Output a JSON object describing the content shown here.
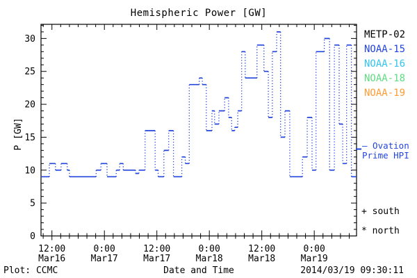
{
  "chart_data": {
    "type": "line",
    "subtype": "step-histogram",
    "title": "Hemispheric Power [GW]",
    "xlabel": "Date and Time",
    "ylabel": "P [GW]",
    "ylim": [
      0,
      32.15
    ],
    "grid": false,
    "legend_position": "right",
    "y_major_ticks": [
      0,
      5,
      10,
      15,
      20,
      25,
      30
    ],
    "y_minor_tick_step": 1,
    "x_axis": {
      "start": "2014 Mar16 09:30",
      "end": "2014 Mar19 09:40",
      "hours_span": 72.17,
      "minor_tick_step_hours": 2,
      "major_ticks": [
        {
          "t": 2.5,
          "time": "12:00",
          "date": "Mar16"
        },
        {
          "t": 14.5,
          "time": "0:00",
          "date": "Mar17"
        },
        {
          "t": 26.5,
          "time": "12:00",
          "date": "Mar17"
        },
        {
          "t": 38.5,
          "time": "0:00",
          "date": "Mar18"
        },
        {
          "t": 50.5,
          "time": "12:00",
          "date": "Mar18"
        },
        {
          "t": 62.5,
          "time": "0:00",
          "date": "Mar19"
        }
      ]
    },
    "series": [
      {
        "name": "NOAA-15",
        "color": "#2244dd",
        "line_style": "solid horizontal steps with dotted vertical connectors",
        "steps_t_hours_value_gw": [
          [
            0,
            9
          ],
          [
            1.9,
            11
          ],
          [
            3.3,
            10
          ],
          [
            4.6,
            11
          ],
          [
            6,
            10
          ],
          [
            6.5,
            9
          ],
          [
            12.6,
            10
          ],
          [
            13.7,
            11
          ],
          [
            15.1,
            9
          ],
          [
            17.2,
            10
          ],
          [
            18,
            11
          ],
          [
            18.8,
            10
          ],
          [
            21.6,
            9.5
          ],
          [
            22.4,
            10
          ],
          [
            23.8,
            16
          ],
          [
            26.1,
            10
          ],
          [
            26.8,
            9
          ],
          [
            28.1,
            13
          ],
          [
            29.2,
            16
          ],
          [
            30.3,
            9
          ],
          [
            32.2,
            12
          ],
          [
            33,
            11
          ],
          [
            33.9,
            23
          ],
          [
            36.2,
            24
          ],
          [
            36.9,
            23
          ],
          [
            37.8,
            16
          ],
          [
            39.1,
            19
          ],
          [
            39.7,
            17
          ],
          [
            40.7,
            19
          ],
          [
            42,
            21
          ],
          [
            42.9,
            18
          ],
          [
            43.6,
            16
          ],
          [
            44.3,
            16.5
          ],
          [
            45,
            19
          ],
          [
            45.9,
            28
          ],
          [
            46.7,
            24
          ],
          [
            49.4,
            29
          ],
          [
            51,
            25
          ],
          [
            52,
            18
          ],
          [
            52.9,
            28
          ],
          [
            53.9,
            31
          ],
          [
            54.8,
            15
          ],
          [
            55.8,
            19
          ],
          [
            56.9,
            9
          ],
          [
            59.8,
            12
          ],
          [
            60.9,
            18
          ],
          [
            62,
            10
          ],
          [
            62.9,
            28
          ],
          [
            64.8,
            30
          ],
          [
            66,
            10
          ],
          [
            67.1,
            29
          ],
          [
            68.2,
            17
          ],
          [
            69,
            11
          ],
          [
            69.9,
            29
          ],
          [
            71,
            9
          ]
        ]
      }
    ],
    "ovation_marker": {
      "value_gw": 13.2,
      "color": "#2244dd"
    }
  },
  "legend": {
    "items": [
      {
        "label": "METP-02",
        "color": "#000000"
      },
      {
        "label": "NOAA-15",
        "color": "#2244dd"
      },
      {
        "label": "NOAA-16",
        "color": "#33c4ee"
      },
      {
        "label": "NOAA-18",
        "color": "#5fdc82"
      },
      {
        "label": "NOAA-19",
        "color": "#ff9c33"
      }
    ]
  },
  "annotations": {
    "ovation_line1": "— Ovation",
    "ovation_line2": "Prime HPI",
    "south": "+ south",
    "north": "* north"
  },
  "footer": {
    "left": "Plot: CCMC",
    "right": "2014/03/19 09:30:11"
  }
}
